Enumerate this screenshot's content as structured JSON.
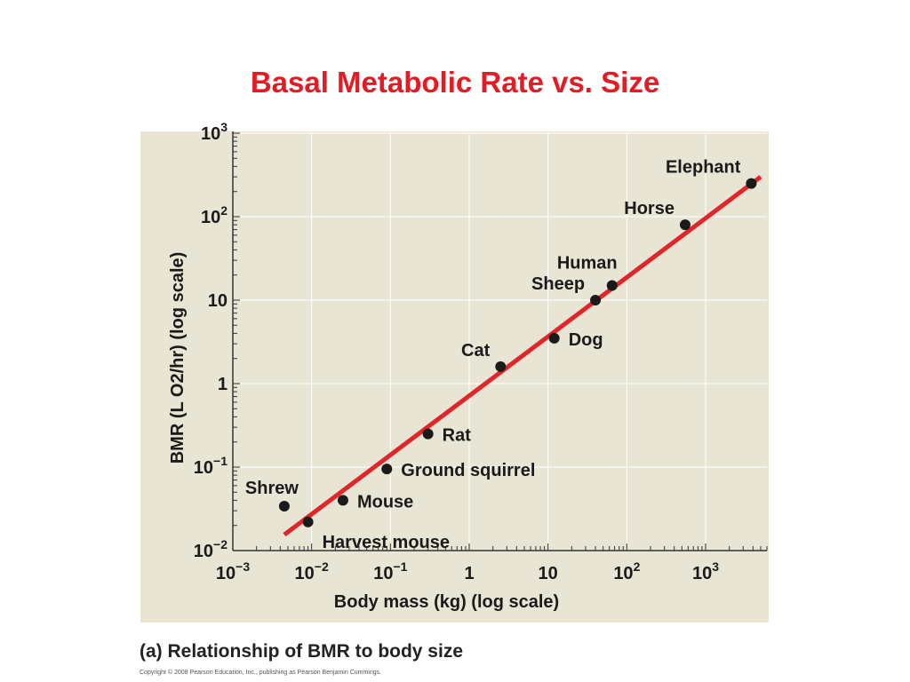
{
  "slide": {
    "title": "Basal Metabolic Rate vs. Size",
    "caption": "(a) Relationship of BMR to body size",
    "copyright": "Copyright © 2008 Pearson Education, Inc., publishing as Pearson Benjamin Cummings."
  },
  "chart_data": {
    "type": "scatter",
    "title": "",
    "xlabel": "Body mass (kg) (log scale)",
    "ylabel": "BMR (L O2/hr) (log scale)",
    "x_scale": "log",
    "y_scale": "log",
    "xlim": [
      0.001,
      6000
    ],
    "ylim": [
      0.01,
      1000
    ],
    "grid": true,
    "x_ticks": [
      {
        "value": 0.001,
        "base": "10",
        "exp": "−3"
      },
      {
        "value": 0.01,
        "base": "10",
        "exp": "−2"
      },
      {
        "value": 0.1,
        "base": "10",
        "exp": "−1"
      },
      {
        "value": 1,
        "base": "1",
        "exp": ""
      },
      {
        "value": 10,
        "base": "10",
        "exp": ""
      },
      {
        "value": 100,
        "base": "10",
        "exp": "2"
      },
      {
        "value": 1000,
        "base": "10",
        "exp": "3"
      }
    ],
    "y_ticks": [
      {
        "value": 0.01,
        "base": "10",
        "exp": "−2"
      },
      {
        "value": 0.1,
        "base": "10",
        "exp": "−1"
      },
      {
        "value": 1,
        "base": "1",
        "exp": ""
      },
      {
        "value": 10,
        "base": "10",
        "exp": ""
      },
      {
        "value": 100,
        "base": "10",
        "exp": "2"
      },
      {
        "value": 1000,
        "base": "10",
        "exp": "3"
      }
    ],
    "points": [
      {
        "label": "Shrew",
        "x": 0.0045,
        "y": 0.034,
        "label_pos": "above"
      },
      {
        "label": "Harvest mouse",
        "x": 0.009,
        "y": 0.022,
        "label_pos": "below-right"
      },
      {
        "label": "Mouse",
        "x": 0.025,
        "y": 0.04,
        "label_pos": "right"
      },
      {
        "label": "Ground squirrel",
        "x": 0.09,
        "y": 0.095,
        "label_pos": "right"
      },
      {
        "label": "Rat",
        "x": 0.3,
        "y": 0.25,
        "label_pos": "right"
      },
      {
        "label": "Cat",
        "x": 2.5,
        "y": 1.6,
        "label_pos": "above-left"
      },
      {
        "label": "Dog",
        "x": 12,
        "y": 3.5,
        "label_pos": "right"
      },
      {
        "label": "Sheep",
        "x": 40,
        "y": 10,
        "label_pos": "above-left"
      },
      {
        "label": "Human",
        "x": 65,
        "y": 15,
        "label_pos": "above"
      },
      {
        "label": "Horse",
        "x": 550,
        "y": 80,
        "label_pos": "above-left"
      },
      {
        "label": "Elephant",
        "x": 3800,
        "y": 250,
        "label_pos": "above-left"
      }
    ],
    "fit_line": {
      "color": "#e0262b",
      "x": [
        0.0045,
        5000
      ],
      "y": [
        0.0155,
        300
      ]
    },
    "colors": {
      "background": "#e9e5d5",
      "grid": "#ffffff",
      "point": "#1a1a1a",
      "axis": "#333333"
    }
  }
}
